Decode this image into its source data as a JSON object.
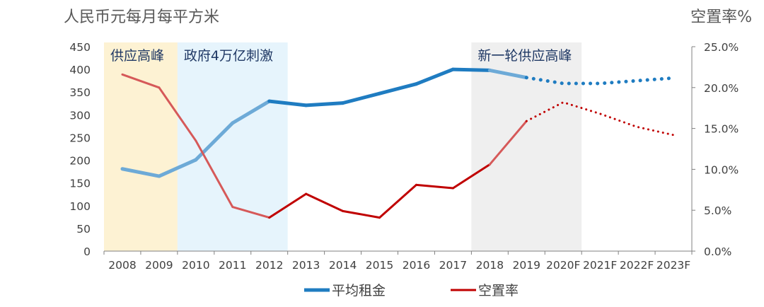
{
  "chart_data": {
    "type": "line",
    "y_left_label": "人民币元每月每平方米",
    "y_right_label": "空置率%",
    "categories": [
      "2008",
      "2009",
      "2010",
      "2011",
      "2012",
      "2013",
      "2014",
      "2015",
      "2016",
      "2017",
      "2018",
      "2019",
      "2020F",
      "2021F",
      "2022F",
      "2023F"
    ],
    "y_left_ticks": [
      "0",
      "50",
      "100",
      "150",
      "200",
      "250",
      "300",
      "350",
      "400",
      "450"
    ],
    "y_right_ticks": [
      "0.0%",
      "5.0%",
      "10.0%",
      "15.0%",
      "20.0%",
      "25.0%"
    ],
    "y_left_range": [
      0,
      450
    ],
    "y_right_range": [
      0,
      25
    ],
    "bands": [
      {
        "label": "供应高峰",
        "from": "2008",
        "to": "2009",
        "color": "#fdf2d3",
        "text_color": "#1f3864"
      },
      {
        "label": "政府4万亿刺激",
        "from": "2010",
        "to": "2012",
        "color": "#e6f4fc",
        "text_color": "#1f3864"
      },
      {
        "label": "新一轮供应高峰",
        "from": "2018",
        "to": "2020F",
        "color": "#efefef",
        "text_color": "#1f3864"
      }
    ],
    "series": [
      {
        "name": "平均租金",
        "axis": "left",
        "color": "#1f7cc1",
        "values": [
          181,
          165,
          201,
          282,
          330,
          321,
          326,
          347,
          368,
          400,
          398,
          382,
          369,
          369,
          375,
          381
        ],
        "forecast_from_index": 11
      },
      {
        "name": "空置率",
        "axis": "right",
        "color": "#c00000",
        "values": [
          21.6,
          20.0,
          13.5,
          5.4,
          4.1,
          7.0,
          4.9,
          4.1,
          8.1,
          7.7,
          10.6,
          15.9,
          18.2,
          16.8,
          15.2,
          14.2
        ],
        "forecast_from_index": 11
      }
    ],
    "legend": [
      "平均租金",
      "空置率"
    ],
    "legend_position": "bottom",
    "grid": false
  }
}
